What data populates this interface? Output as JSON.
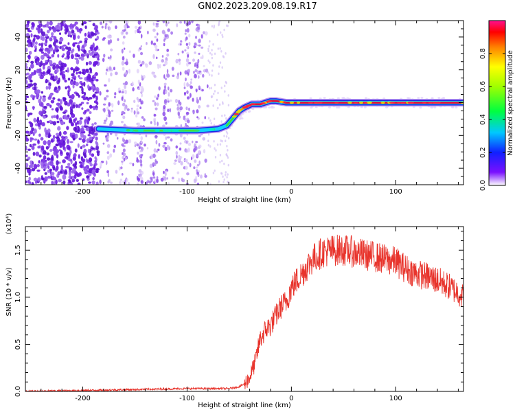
{
  "title": "GN02.2023.209.08.19.R17",
  "colors": {
    "snr_line": "#e8342c",
    "purple_noise": "#6a14d8",
    "trace_core": "#e0123a",
    "trace_edge": "#1a28e6"
  },
  "chart_data": [
    {
      "type": "heatmap",
      "title": "GN02.2023.209.08.19.R17",
      "xlabel": "Height of straight line (km)",
      "ylabel": "Frequency (Hz)",
      "xlim": [
        -255,
        165
      ],
      "ylim": [
        -50,
        50
      ],
      "x_ticks": [
        -200,
        -100,
        0,
        100
      ],
      "x_tick_labels": [
        "-200",
        "-100",
        "0",
        "100"
      ],
      "y_ticks": [
        -40,
        -20,
        0,
        20,
        40
      ],
      "y_tick_labels": [
        "-40",
        "-20",
        "0",
        "20",
        "40"
      ],
      "colorbar": {
        "label": "Normalized spectral amplitude",
        "range": [
          0,
          1
        ],
        "ticks": [
          0.0,
          0.2,
          0.4,
          0.6,
          0.8
        ],
        "tick_labels": [
          "0.0",
          "0.2",
          "0.4",
          "0.6",
          "0.8"
        ],
        "colormap": "rainbow"
      },
      "trace": {
        "x": [
          -185,
          -150,
          -120,
          -90,
          -70,
          -62,
          -50,
          -45,
          -38,
          -30,
          -20,
          -15,
          -5,
          10,
          50,
          100,
          165
        ],
        "y": [
          -16,
          -17,
          -17,
          -17,
          -16,
          -14,
          -5,
          -3,
          -1,
          -1,
          1,
          1,
          0,
          0,
          0,
          0,
          0
        ],
        "amplitude": [
          0.45,
          0.5,
          0.55,
          0.5,
          0.5,
          0.5,
          0.7,
          0.8,
          0.85,
          0.85,
          0.9,
          0.9,
          0.9,
          0.85,
          0.9,
          0.95,
          0.95
        ]
      },
      "noise_region": {
        "dense_x_range": [
          -255,
          -185
        ],
        "sparse_x_range": [
          -185,
          -80
        ],
        "amplitude": 0.05
      }
    },
    {
      "type": "line",
      "title": "",
      "xlabel": "Height of straight line (km)",
      "ylabel": "SNR (10 * v/v)",
      "y_multiplier": "(x10⁴)",
      "xlim": [
        -255,
        165
      ],
      "ylim": [
        0,
        1.75
      ],
      "x_ticks": [
        -200,
        -100,
        0,
        100
      ],
      "x_tick_labels": [
        "-200",
        "-100",
        "0",
        "100"
      ],
      "y_ticks": [
        0.0,
        0.5,
        1.0,
        1.5
      ],
      "y_tick_labels": [
        "0.0",
        "0.5",
        "1.0",
        "1.5"
      ],
      "series": [
        {
          "x": [
            -255,
            -200,
            -150,
            -100,
            -60,
            -50,
            -45,
            -40,
            -35,
            -30,
            -25,
            -20,
            -15,
            -10,
            -5,
            0,
            10,
            20,
            30,
            40,
            50,
            60,
            70,
            80,
            90,
            100,
            110,
            120,
            130,
            140,
            150,
            160,
            165
          ],
          "y": [
            0.0,
            0.01,
            0.02,
            0.03,
            0.03,
            0.05,
            0.08,
            0.15,
            0.3,
            0.55,
            0.65,
            0.7,
            0.8,
            0.9,
            0.95,
            1.1,
            1.25,
            1.4,
            1.48,
            1.5,
            1.5,
            1.48,
            1.45,
            1.43,
            1.4,
            1.38,
            1.3,
            1.25,
            1.22,
            1.18,
            1.12,
            1.05,
            1.0
          ]
        }
      ]
    }
  ]
}
